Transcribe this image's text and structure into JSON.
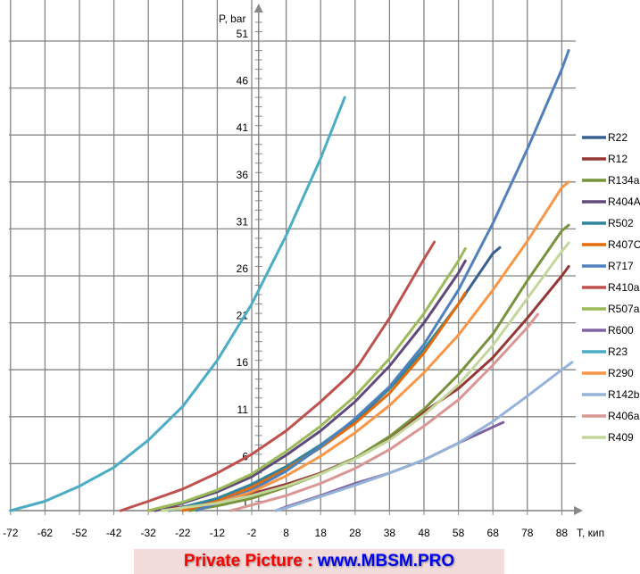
{
  "chart_data": {
    "type": "line",
    "title": "",
    "xlabel": "T, кип",
    "ylabel": "P, bar",
    "x_ticks": [
      -72,
      -62,
      -52,
      -42,
      -32,
      -22,
      -12,
      -2,
      8,
      18,
      28,
      38,
      48,
      58,
      68,
      78,
      88
    ],
    "y_ticks": [
      1,
      6,
      11,
      16,
      21,
      26,
      31,
      36,
      41,
      46,
      51
    ],
    "xlim": [
      -72,
      93
    ],
    "ylim": [
      1,
      53
    ],
    "grid": true,
    "legend_position": "right",
    "series": [
      {
        "name": "R22",
        "color": "#376092",
        "points": [
          [
            -20,
            1
          ],
          [
            -12,
            2
          ],
          [
            -2,
            3.6
          ],
          [
            8,
            5.5
          ],
          [
            18,
            7.8
          ],
          [
            28,
            10.5
          ],
          [
            38,
            14
          ],
          [
            48,
            18
          ],
          [
            58,
            23
          ],
          [
            68,
            28.4
          ],
          [
            70,
            29
          ]
        ]
      },
      {
        "name": "R12",
        "color": "#953735",
        "points": [
          [
            -32,
            1
          ],
          [
            -22,
            1.4
          ],
          [
            -12,
            2
          ],
          [
            -2,
            2.8
          ],
          [
            8,
            3.8
          ],
          [
            18,
            5
          ],
          [
            28,
            6.6
          ],
          [
            38,
            8.8
          ],
          [
            48,
            11.5
          ],
          [
            58,
            14
          ],
          [
            68,
            17.3
          ],
          [
            78,
            21.5
          ],
          [
            88,
            26
          ],
          [
            90,
            27
          ]
        ]
      },
      {
        "name": "R134a",
        "color": "#77933c",
        "points": [
          [
            -20,
            1
          ],
          [
            -12,
            1.5
          ],
          [
            -2,
            2.3
          ],
          [
            8,
            3.5
          ],
          [
            18,
            4.9
          ],
          [
            28,
            6.6
          ],
          [
            38,
            8.9
          ],
          [
            48,
            11.8
          ],
          [
            58,
            15.5
          ],
          [
            68,
            19.8
          ],
          [
            78,
            25.5
          ],
          [
            88,
            30.8
          ],
          [
            90,
            31.4
          ]
        ]
      },
      {
        "name": "R404A",
        "color": "#604a7b",
        "points": [
          [
            -30,
            1
          ],
          [
            -22,
            1.8
          ],
          [
            -12,
            3
          ],
          [
            -2,
            4.6
          ],
          [
            8,
            6.9
          ],
          [
            18,
            9.5
          ],
          [
            28,
            12.6
          ],
          [
            38,
            16.4
          ],
          [
            48,
            21
          ],
          [
            58,
            26.3
          ],
          [
            60,
            27.6
          ]
        ]
      },
      {
        "name": "R502",
        "color": "#31859c",
        "points": [
          [
            -26,
            1
          ],
          [
            -12,
            2.3
          ],
          [
            -2,
            3.8
          ],
          [
            8,
            5.7
          ],
          [
            18,
            8
          ],
          [
            28,
            10.7
          ],
          [
            38,
            14
          ],
          [
            48,
            18.2
          ],
          [
            58,
            23
          ],
          [
            60,
            24
          ]
        ]
      },
      {
        "name": "R407C",
        "color": "#e46c0a",
        "points": [
          [
            -22,
            1
          ],
          [
            -12,
            2
          ],
          [
            -2,
            3.5
          ],
          [
            8,
            5.4
          ],
          [
            18,
            7.7
          ],
          [
            28,
            10.3
          ],
          [
            38,
            13.5
          ],
          [
            48,
            17.8
          ],
          [
            58,
            23
          ],
          [
            60,
            24.2
          ]
        ]
      },
      {
        "name": "R717",
        "color": "#4f81bd",
        "points": [
          [
            -18,
            1
          ],
          [
            -12,
            1.8
          ],
          [
            -2,
            3.2
          ],
          [
            8,
            5.2
          ],
          [
            18,
            7.8
          ],
          [
            28,
            10.8
          ],
          [
            38,
            14.2
          ],
          [
            48,
            18.7
          ],
          [
            58,
            24.5
          ],
          [
            68,
            31.6
          ],
          [
            78,
            39.5
          ],
          [
            88,
            48
          ],
          [
            90,
            50
          ]
        ]
      },
      {
        "name": "R410a",
        "color": "#c0504d",
        "points": [
          [
            -40,
            1
          ],
          [
            -32,
            2
          ],
          [
            -22,
            3.3
          ],
          [
            -12,
            5
          ],
          [
            -2,
            7
          ],
          [
            8,
            9.5
          ],
          [
            18,
            12.6
          ],
          [
            26,
            15.3
          ],
          [
            29,
            16.5
          ],
          [
            38,
            21.5
          ],
          [
            48,
            27.8
          ],
          [
            51,
            29.6
          ]
        ]
      },
      {
        "name": "R507a",
        "color": "#9bbb59",
        "points": [
          [
            -32,
            1
          ],
          [
            -22,
            1.9
          ],
          [
            -12,
            3.2
          ],
          [
            -2,
            4.9
          ],
          [
            8,
            7.3
          ],
          [
            18,
            10
          ],
          [
            28,
            13.2
          ],
          [
            38,
            17.2
          ],
          [
            48,
            22
          ],
          [
            58,
            27.6
          ],
          [
            60,
            28.9
          ]
        ]
      },
      {
        "name": "R600",
        "color": "#8064a2",
        "points": [
          [
            5,
            1
          ],
          [
            8,
            1.4
          ],
          [
            18,
            2.6
          ],
          [
            28,
            3.9
          ],
          [
            38,
            5
          ],
          [
            48,
            6.4
          ],
          [
            58,
            8.2
          ],
          [
            68,
            9.9
          ],
          [
            71,
            10.4
          ]
        ]
      },
      {
        "name": "R23",
        "color": "#4bacc6",
        "points": [
          [
            -72,
            1
          ],
          [
            -62,
            2
          ],
          [
            -52,
            3.6
          ],
          [
            -42,
            5.6
          ],
          [
            -32,
            8.5
          ],
          [
            -22,
            12.1
          ],
          [
            -12,
            17
          ],
          [
            -2,
            23
          ],
          [
            8,
            30.3
          ],
          [
            18,
            38.5
          ],
          [
            25,
            45
          ]
        ]
      },
      {
        "name": "R290",
        "color": "#f79646",
        "points": [
          [
            -28,
            1
          ],
          [
            -12,
            1.8
          ],
          [
            -2,
            3
          ],
          [
            8,
            4.7
          ],
          [
            18,
            6.8
          ],
          [
            28,
            9.3
          ],
          [
            38,
            12.2
          ],
          [
            48,
            15.7
          ],
          [
            58,
            19.7
          ],
          [
            68,
            24.5
          ],
          [
            78,
            29.7
          ],
          [
            88,
            35.4
          ],
          [
            90,
            36
          ]
        ]
      },
      {
        "name": "R142b",
        "color": "#95b3d7",
        "points": [
          [
            5,
            1
          ],
          [
            8,
            1.3
          ],
          [
            18,
            2.5
          ],
          [
            28,
            3.7
          ],
          [
            38,
            5
          ],
          [
            48,
            6.4
          ],
          [
            58,
            8.2
          ],
          [
            68,
            10.5
          ],
          [
            78,
            13.2
          ],
          [
            88,
            16
          ],
          [
            91,
            16.8
          ]
        ]
      },
      {
        "name": "R406a",
        "color": "#d99694",
        "points": [
          [
            -8,
            1
          ],
          [
            -2,
            1.6
          ],
          [
            8,
            2.6
          ],
          [
            18,
            3.9
          ],
          [
            28,
            5.5
          ],
          [
            38,
            7.5
          ],
          [
            48,
            10
          ],
          [
            58,
            12.8
          ],
          [
            68,
            16.5
          ],
          [
            78,
            20.5
          ],
          [
            81,
            21.9
          ]
        ]
      },
      {
        "name": "R409",
        "color": "#c3d69b",
        "points": [
          [
            -28,
            1
          ],
          [
            -12,
            1.8
          ],
          [
            -2,
            2.6
          ],
          [
            8,
            3.6
          ],
          [
            18,
            4.9
          ],
          [
            28,
            6.5
          ],
          [
            38,
            8.5
          ],
          [
            48,
            11.2
          ],
          [
            58,
            14.4
          ],
          [
            68,
            18.6
          ],
          [
            78,
            23.6
          ],
          [
            88,
            28.6
          ],
          [
            90,
            29.5
          ]
        ]
      }
    ]
  },
  "watermark": {
    "prefix": "Private Picture : ",
    "site": "www.MBSM.PRO"
  }
}
